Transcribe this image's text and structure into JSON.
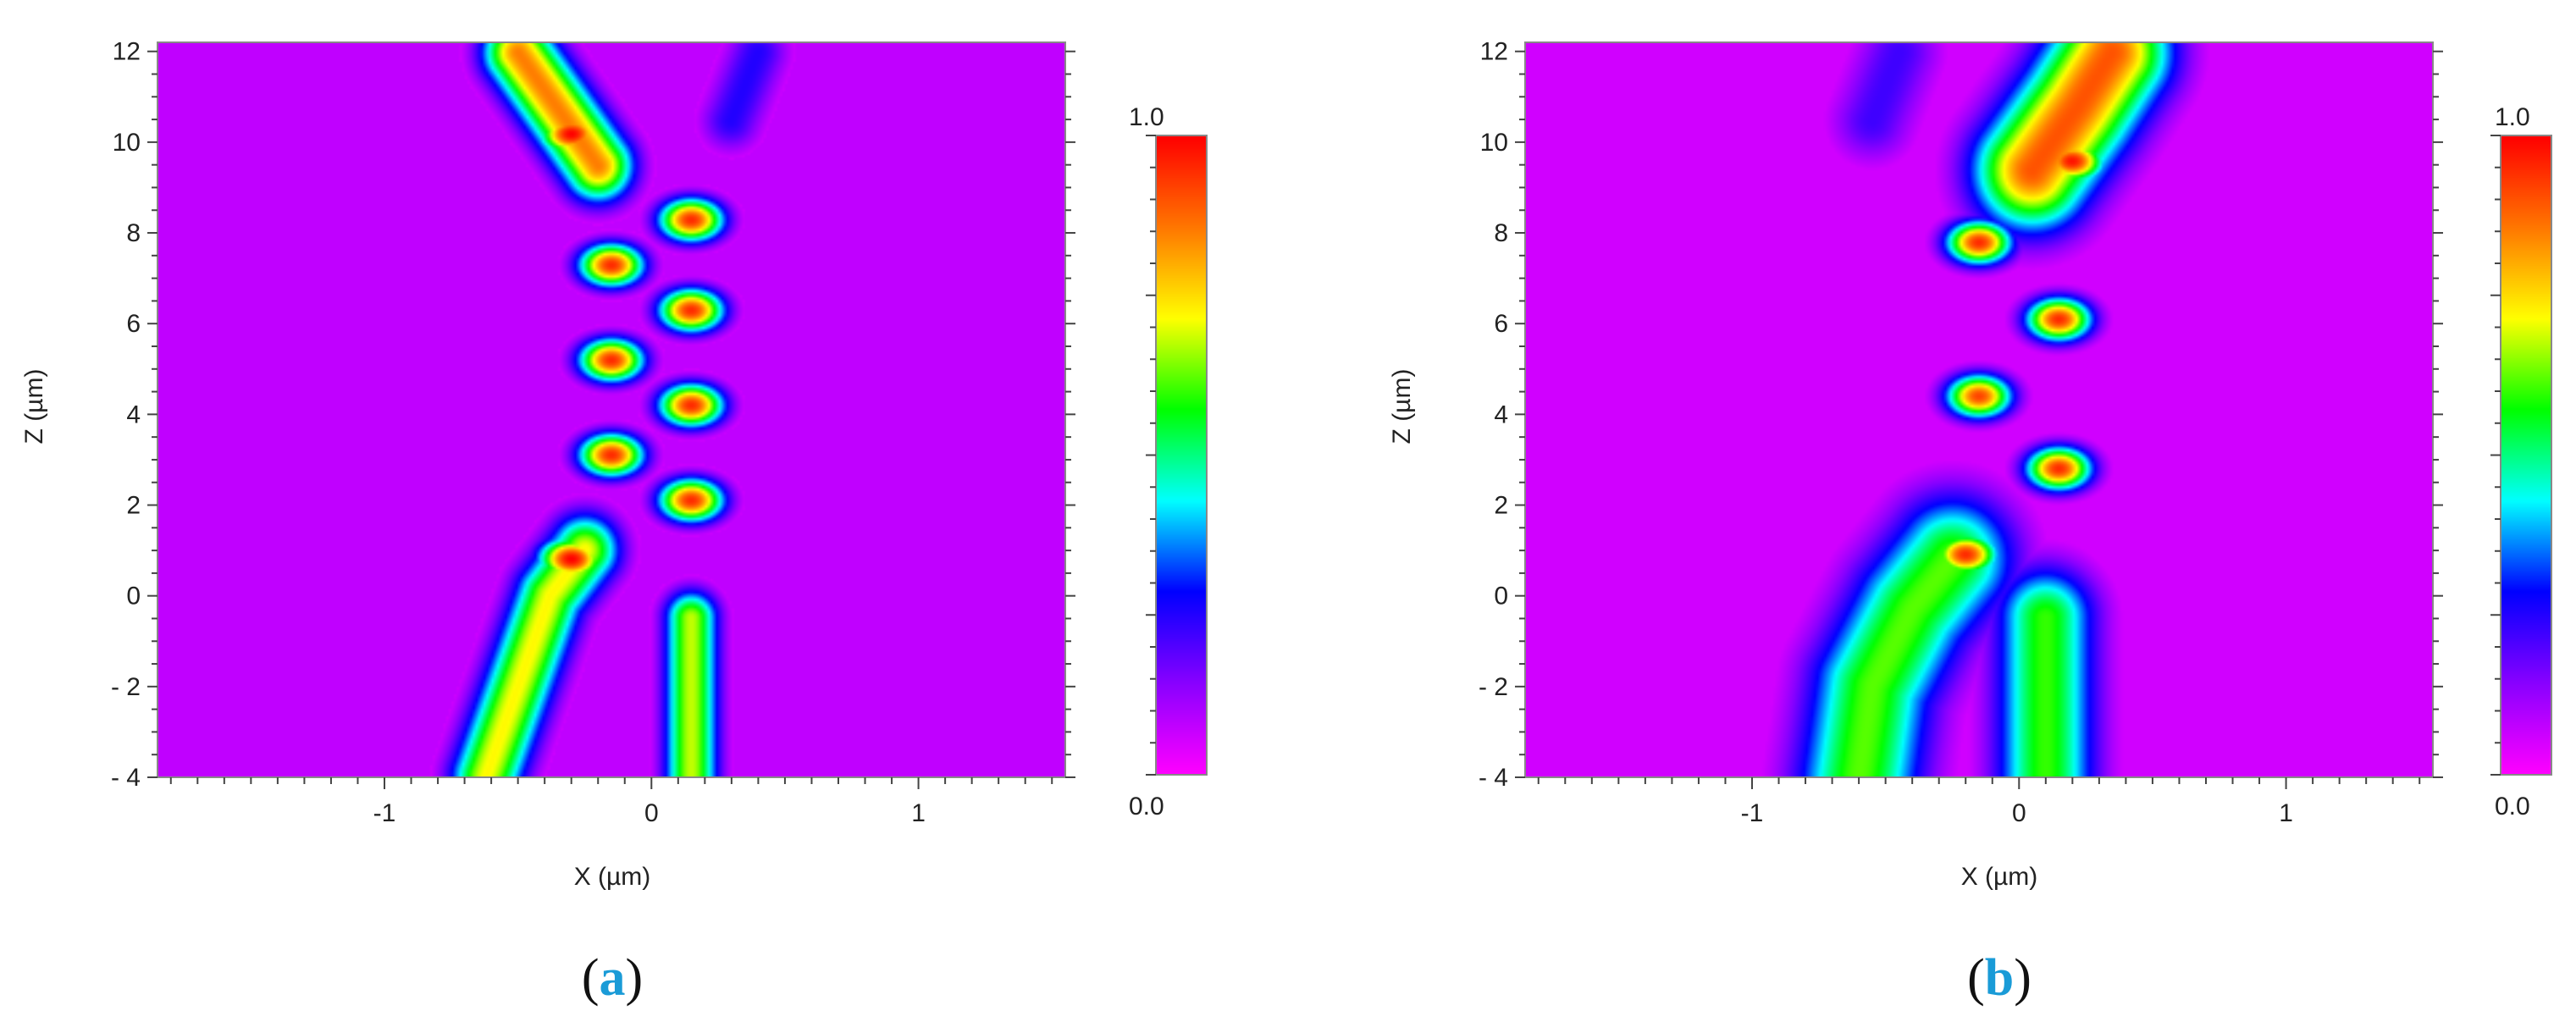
{
  "chart_data": [
    {
      "type": "heatmap",
      "panel_label": "a",
      "xlabel": "X (µm)",
      "ylabel": "Z (µm)",
      "xlim": [
        -1.85,
        1.55
      ],
      "ylim": [
        -4,
        12.2
      ],
      "xticks": [
        "-1",
        "0",
        "1"
      ],
      "xtick_values": [
        -1,
        0,
        1
      ],
      "yticks": [
        "- 4",
        "- 2",
        "0",
        "2",
        "4",
        "6",
        "8",
        "10",
        "12"
      ],
      "ytick_values": [
        -4,
        -2,
        0,
        2,
        4,
        6,
        8,
        10,
        12
      ],
      "colorbar": {
        "min_label": "0.0",
        "max_label": "1.0",
        "min": 0.0,
        "max": 1.0
      },
      "colormap": [
        "#ff00ff",
        "#8800ff",
        "#0000ff",
        "#00ffff",
        "#00ff00",
        "#ffff00",
        "#ff7700",
        "#ff0000"
      ],
      "background_color": "#c000ff",
      "field": {
        "beams": [
          {
            "name": "beam-left-in",
            "points": [
              [
                -0.62,
                -4
              ],
              [
                -0.5,
                -2
              ],
              [
                -0.38,
                0
              ],
              [
                -0.25,
                1
              ]
            ],
            "width": 0.17,
            "intensity": 0.72
          },
          {
            "name": "beam-right-in",
            "points": [
              [
                0.15,
                -4
              ],
              [
                0.15,
                -2
              ],
              [
                0.15,
                -0.5
              ]
            ],
            "width": 0.13,
            "intensity": 0.68
          },
          {
            "name": "beam-left-out",
            "points": [
              [
                -0.2,
                9.5
              ],
              [
                -0.32,
                10.5
              ],
              [
                -0.5,
                12
              ]
            ],
            "width": 0.17,
            "intensity": 0.85
          },
          {
            "name": "beam-right-out",
            "points": [
              [
                0.3,
                10.5
              ],
              [
                0.4,
                12
              ]
            ],
            "width": 0.15,
            "intensity": 0.25
          }
        ],
        "peaks": [
          {
            "x": -0.3,
            "z": 0.8,
            "intensity": 1.0
          },
          {
            "x": 0.15,
            "z": 2.1,
            "intensity": 0.95
          },
          {
            "x": -0.15,
            "z": 3.1,
            "intensity": 0.95
          },
          {
            "x": 0.15,
            "z": 4.2,
            "intensity": 0.95
          },
          {
            "x": -0.15,
            "z": 5.2,
            "intensity": 0.95
          },
          {
            "x": 0.15,
            "z": 6.3,
            "intensity": 0.95
          },
          {
            "x": -0.15,
            "z": 7.3,
            "intensity": 0.95
          },
          {
            "x": 0.15,
            "z": 8.3,
            "intensity": 0.95
          },
          {
            "x": -0.3,
            "z": 10.2,
            "intensity": 1.0
          }
        ]
      }
    },
    {
      "type": "heatmap",
      "panel_label": "b",
      "xlabel": "X (µm)",
      "ylabel": "Z (µm)",
      "xlim": [
        -1.85,
        1.55
      ],
      "ylim": [
        -4,
        12.2
      ],
      "xticks": [
        "-1",
        "0",
        "1"
      ],
      "xtick_values": [
        -1,
        0,
        1
      ],
      "yticks": [
        "- 4",
        "- 2",
        "0",
        "2",
        "4",
        "6",
        "8",
        "10",
        "12"
      ],
      "ytick_values": [
        -4,
        -2,
        0,
        2,
        4,
        6,
        8,
        10,
        12
      ],
      "colorbar": {
        "min_label": "0.0",
        "max_label": "1.0",
        "min": 0.0,
        "max": 1.0
      },
      "colormap": [
        "#ff00ff",
        "#8800ff",
        "#0000ff",
        "#00ffff",
        "#00ff00",
        "#ffff00",
        "#ff7700",
        "#ff0000"
      ],
      "background_color": "#d000ff",
      "field": {
        "beams": [
          {
            "name": "beam-left-in",
            "points": [
              [
                -0.6,
                -4
              ],
              [
                -0.55,
                -2
              ],
              [
                -0.4,
                -0.3
              ],
              [
                -0.25,
                0.8
              ]
            ],
            "width": 0.3,
            "intensity": 0.62
          },
          {
            "name": "beam-right-in",
            "points": [
              [
                0.1,
                -4
              ],
              [
                0.1,
                -2
              ],
              [
                0.1,
                -0.5
              ]
            ],
            "width": 0.24,
            "intensity": 0.6
          },
          {
            "name": "beam-out",
            "points": [
              [
                0.05,
                9.4
              ],
              [
                0.22,
                10.8
              ],
              [
                0.35,
                12
              ]
            ],
            "width": 0.28,
            "intensity": 0.9
          },
          {
            "name": "beam-dark-top",
            "points": [
              [
                -0.55,
                10.5
              ],
              [
                -0.45,
                12
              ]
            ],
            "width": 0.2,
            "intensity": 0.22
          }
        ],
        "peaks": [
          {
            "x": -0.2,
            "z": 0.9,
            "intensity": 0.95
          },
          {
            "x": 0.15,
            "z": 2.8,
            "intensity": 0.95
          },
          {
            "x": -0.15,
            "z": 4.4,
            "intensity": 0.92
          },
          {
            "x": 0.15,
            "z": 6.1,
            "intensity": 0.95
          },
          {
            "x": -0.15,
            "z": 7.8,
            "intensity": 0.95
          },
          {
            "x": 0.2,
            "z": 9.6,
            "intensity": 0.98
          }
        ]
      }
    }
  ]
}
